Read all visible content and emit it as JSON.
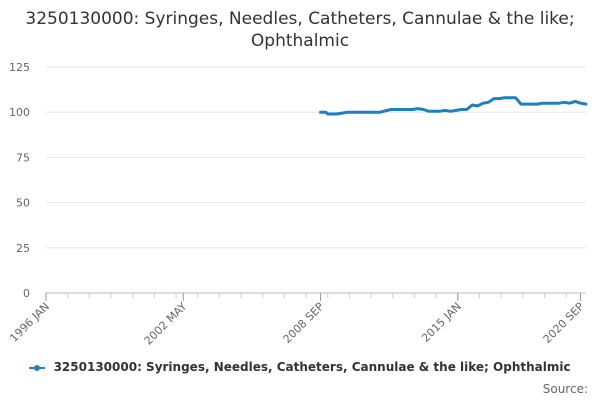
{
  "chart_data": {
    "type": "line",
    "title": "3250130000: Syringes, Needles, Catheters, Cannulae & the like; Ophthalmic",
    "xlabel": "",
    "ylabel": "",
    "x_range": [
      "1996 JAN",
      "2020 DEC"
    ],
    "x_ticks": [
      "1996 JAN",
      "2002 MAY",
      "2008 SEP",
      "2015 JAN",
      "2020 SEP"
    ],
    "ylim": [
      0,
      125
    ],
    "y_ticks": [
      0,
      25,
      50,
      75,
      100,
      125
    ],
    "grid": true,
    "legend_position": "bottom",
    "series": [
      {
        "name": "3250130000: Syringes, Needles, Catheters, Cannulae & the like; Ophthalmic",
        "color": "#1f7fbf",
        "x": [
          "2008 SEP",
          "2008 DEC",
          "2009 JAN",
          "2009 MAR",
          "2009 JUN",
          "2009 SEP",
          "2009 DEC",
          "2010 JUN",
          "2010 DEC",
          "2011 JUN",
          "2011 DEC",
          "2012 MAR",
          "2012 JUN",
          "2012 DEC",
          "2013 MAR",
          "2013 JUN",
          "2013 SEP",
          "2013 DEC",
          "2014 MAR",
          "2014 JUN",
          "2014 SEP",
          "2014 DEC",
          "2015 MAR",
          "2015 JUN",
          "2015 SEP",
          "2015 DEC",
          "2016 MAR",
          "2016 JUN",
          "2016 SEP",
          "2016 DEC",
          "2017 MAR",
          "2017 JUN",
          "2017 SEP",
          "2017 DEC",
          "2018 MAR",
          "2018 JUN",
          "2018 SEP",
          "2018 DEC",
          "2019 MAR",
          "2019 JUN",
          "2019 SEP",
          "2019 DEC",
          "2020 MAR",
          "2020 JUN",
          "2020 SEP",
          "2020 DEC"
        ],
        "values": [
          100,
          100,
          99,
          99,
          99,
          99.5,
          100,
          100,
          100,
          100,
          101.5,
          101.5,
          101.5,
          101.5,
          102,
          101.5,
          100.5,
          100.5,
          100.5,
          101,
          100.5,
          101,
          101.5,
          101.5,
          104,
          103.5,
          105,
          105.5,
          107.5,
          107.5,
          108,
          108,
          108,
          104.5,
          104.5,
          104.5,
          104.5,
          105,
          105,
          105,
          105,
          105.5,
          105,
          106,
          105,
          104.5
        ]
      }
    ]
  },
  "source_label": "Source:"
}
